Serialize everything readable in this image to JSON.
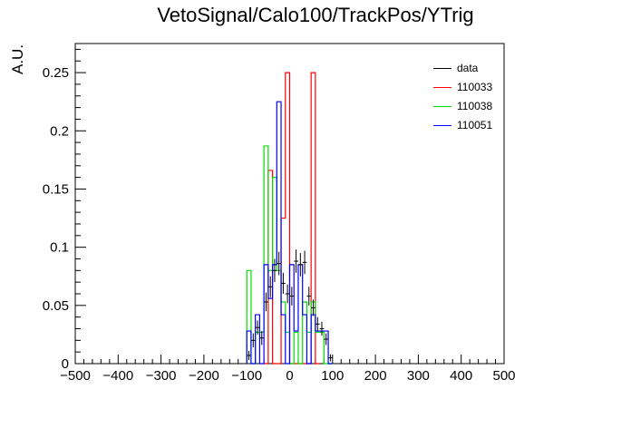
{
  "chart_data": {
    "type": "histogram",
    "title": "VetoSignal/Calo100/TrackPos/YTrig",
    "xlabel": "",
    "ylabel": "A.U.",
    "xlim": [
      -500,
      500
    ],
    "ylim": [
      0,
      0.275
    ],
    "x_ticks": [
      -500,
      -400,
      -300,
      -200,
      -100,
      0,
      100,
      200,
      300,
      400,
      500
    ],
    "y_ticks": [
      0,
      0.05,
      0.1,
      0.15,
      0.2,
      0.25
    ],
    "y_tick_labels": [
      "0",
      "0.05",
      "0.1",
      "0.15",
      "0.2",
      "0.25"
    ],
    "x_tick_labels": [
      "−500",
      "−400",
      "−300",
      "−200",
      "−100",
      "0",
      "100",
      "200",
      "300",
      "400",
      "500"
    ],
    "bin_width": 10,
    "legend_position": "top-right",
    "series": [
      {
        "name": "data",
        "color": "#000000",
        "style": "points",
        "points": [
          {
            "x": -95,
            "y": 0.007,
            "err": 0.004
          },
          {
            "x": -85,
            "y": 0.02,
            "err": 0.006
          },
          {
            "x": -75,
            "y": 0.031,
            "err": 0.006
          },
          {
            "x": -65,
            "y": 0.022,
            "err": 0.006
          },
          {
            "x": -55,
            "y": 0.053,
            "err": 0.008
          },
          {
            "x": -45,
            "y": 0.066,
            "err": 0.009
          },
          {
            "x": -35,
            "y": 0.08,
            "err": 0.01
          },
          {
            "x": -25,
            "y": 0.086,
            "err": 0.01
          },
          {
            "x": -15,
            "y": 0.069,
            "err": 0.009
          },
          {
            "x": -5,
            "y": 0.06,
            "err": 0.008
          },
          {
            "x": 5,
            "y": 0.058,
            "err": 0.008
          },
          {
            "x": 15,
            "y": 0.088,
            "err": 0.01
          },
          {
            "x": 25,
            "y": 0.085,
            "err": 0.01
          },
          {
            "x": 35,
            "y": 0.087,
            "err": 0.01
          },
          {
            "x": 45,
            "y": 0.058,
            "err": 0.008
          },
          {
            "x": 55,
            "y": 0.048,
            "err": 0.007
          },
          {
            "x": 65,
            "y": 0.034,
            "err": 0.006
          },
          {
            "x": 75,
            "y": 0.03,
            "err": 0.006
          },
          {
            "x": 85,
            "y": 0.021,
            "err": 0.005
          },
          {
            "x": 95,
            "y": 0.005,
            "err": 0.003
          }
        ]
      },
      {
        "name": "110033",
        "color": "#ff0000",
        "style": "step",
        "bins": [
          {
            "x0": -20,
            "x1": -10,
            "y": 0.125
          },
          {
            "x0": -10,
            "x1": 0,
            "y": 0.25
          },
          {
            "x0": 0,
            "x1": 10,
            "y": 0.0
          },
          {
            "x0": 10,
            "x1": 20,
            "y": 0.0
          },
          {
            "x0": 20,
            "x1": 30,
            "y": 0.0
          },
          {
            "x0": 30,
            "x1": 40,
            "y": 0.0
          },
          {
            "x0": 40,
            "x1": 50,
            "y": 0.0
          },
          {
            "x0": 50,
            "x1": 60,
            "y": 0.25
          },
          {
            "x0": 60,
            "x1": 70,
            "y": 0.0
          },
          {
            "x0": -60,
            "x1": -50,
            "y": 0.0
          },
          {
            "x0": -50,
            "x1": -40,
            "y": 0.166
          },
          {
            "x0": -40,
            "x1": -30,
            "y": 0.0
          },
          {
            "x0": -30,
            "x1": -20,
            "y": 0.0
          }
        ]
      },
      {
        "name": "110038",
        "color": "#00dd00",
        "style": "step",
        "bins": [
          {
            "x0": -100,
            "x1": -90,
            "y": 0.08
          },
          {
            "x0": -90,
            "x1": -80,
            "y": 0.0
          },
          {
            "x0": -80,
            "x1": -70,
            "y": 0.027
          },
          {
            "x0": -70,
            "x1": -60,
            "y": 0.027
          },
          {
            "x0": -60,
            "x1": -50,
            "y": 0.187
          },
          {
            "x0": -50,
            "x1": -40,
            "y": 0.08
          },
          {
            "x0": -40,
            "x1": -30,
            "y": 0.16
          },
          {
            "x0": -30,
            "x1": -20,
            "y": 0.08
          },
          {
            "x0": -20,
            "x1": -10,
            "y": 0.053
          },
          {
            "x0": -10,
            "x1": 0,
            "y": 0.027
          },
          {
            "x0": 0,
            "x1": 10,
            "y": 0.0
          },
          {
            "x0": 10,
            "x1": 20,
            "y": 0.027
          },
          {
            "x0": 20,
            "x1": 30,
            "y": 0.0
          },
          {
            "x0": 30,
            "x1": 40,
            "y": 0.053
          },
          {
            "x0": 40,
            "x1": 50,
            "y": 0.027
          },
          {
            "x0": 50,
            "x1": 60,
            "y": 0.053
          },
          {
            "x0": 60,
            "x1": 70,
            "y": 0.027
          },
          {
            "x0": 70,
            "x1": 80,
            "y": 0.027
          },
          {
            "x0": 80,
            "x1": 90,
            "y": 0.0
          },
          {
            "x0": 90,
            "x1": 100,
            "y": 0.0
          }
        ]
      },
      {
        "name": "110051",
        "color": "#0000ff",
        "style": "step",
        "bins": [
          {
            "x0": -100,
            "x1": -90,
            "y": 0.028
          },
          {
            "x0": -90,
            "x1": -80,
            "y": 0.0
          },
          {
            "x0": -80,
            "x1": -70,
            "y": 0.042
          },
          {
            "x0": -70,
            "x1": -60,
            "y": 0.0
          },
          {
            "x0": -60,
            "x1": -50,
            "y": 0.085
          },
          {
            "x0": -50,
            "x1": -40,
            "y": 0.056
          },
          {
            "x0": -40,
            "x1": -30,
            "y": 0.085
          },
          {
            "x0": -30,
            "x1": -20,
            "y": 0.225
          },
          {
            "x0": -20,
            "x1": -10,
            "y": 0.042
          },
          {
            "x0": -10,
            "x1": 0,
            "y": 0.0
          },
          {
            "x0": 0,
            "x1": 10,
            "y": 0.085
          },
          {
            "x0": 10,
            "x1": 20,
            "y": 0.028
          },
          {
            "x0": 20,
            "x1": 30,
            "y": 0.085
          },
          {
            "x0": 30,
            "x1": 40,
            "y": 0.042
          },
          {
            "x0": 40,
            "x1": 50,
            "y": 0.0
          },
          {
            "x0": 50,
            "x1": 60,
            "y": 0.042
          },
          {
            "x0": 60,
            "x1": 70,
            "y": 0.028
          },
          {
            "x0": 70,
            "x1": 80,
            "y": 0.028
          },
          {
            "x0": 80,
            "x1": 90,
            "y": 0.028
          },
          {
            "x0": 90,
            "x1": 100,
            "y": 0.0
          }
        ]
      }
    ]
  }
}
